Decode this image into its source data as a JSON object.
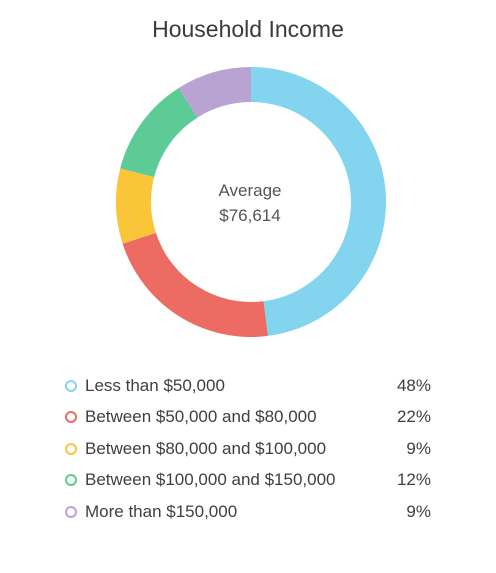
{
  "chart_data": {
    "type": "pie",
    "title": "Household Income",
    "center_label": "Average",
    "center_value": "$76,614",
    "slices": [
      {
        "name": "Less than $50,000",
        "value": 48,
        "display": "48%",
        "color": "#82d4ef"
      },
      {
        "name": "Between $50,000 and $80,000",
        "value": 22,
        "display": "22%",
        "color": "#ec6b62"
      },
      {
        "name": "Between $80,000 and $100,000",
        "value": 9,
        "display": "9%",
        "color": "#fbc53a"
      },
      {
        "name": "Between $100,000 and $150,000",
        "value": 12,
        "display": "12%",
        "color": "#5ccb95"
      },
      {
        "name": "More than $150,000",
        "value": 9,
        "display": "9%",
        "color": "#b8a3d3"
      }
    ],
    "legend_position": "bottom"
  }
}
